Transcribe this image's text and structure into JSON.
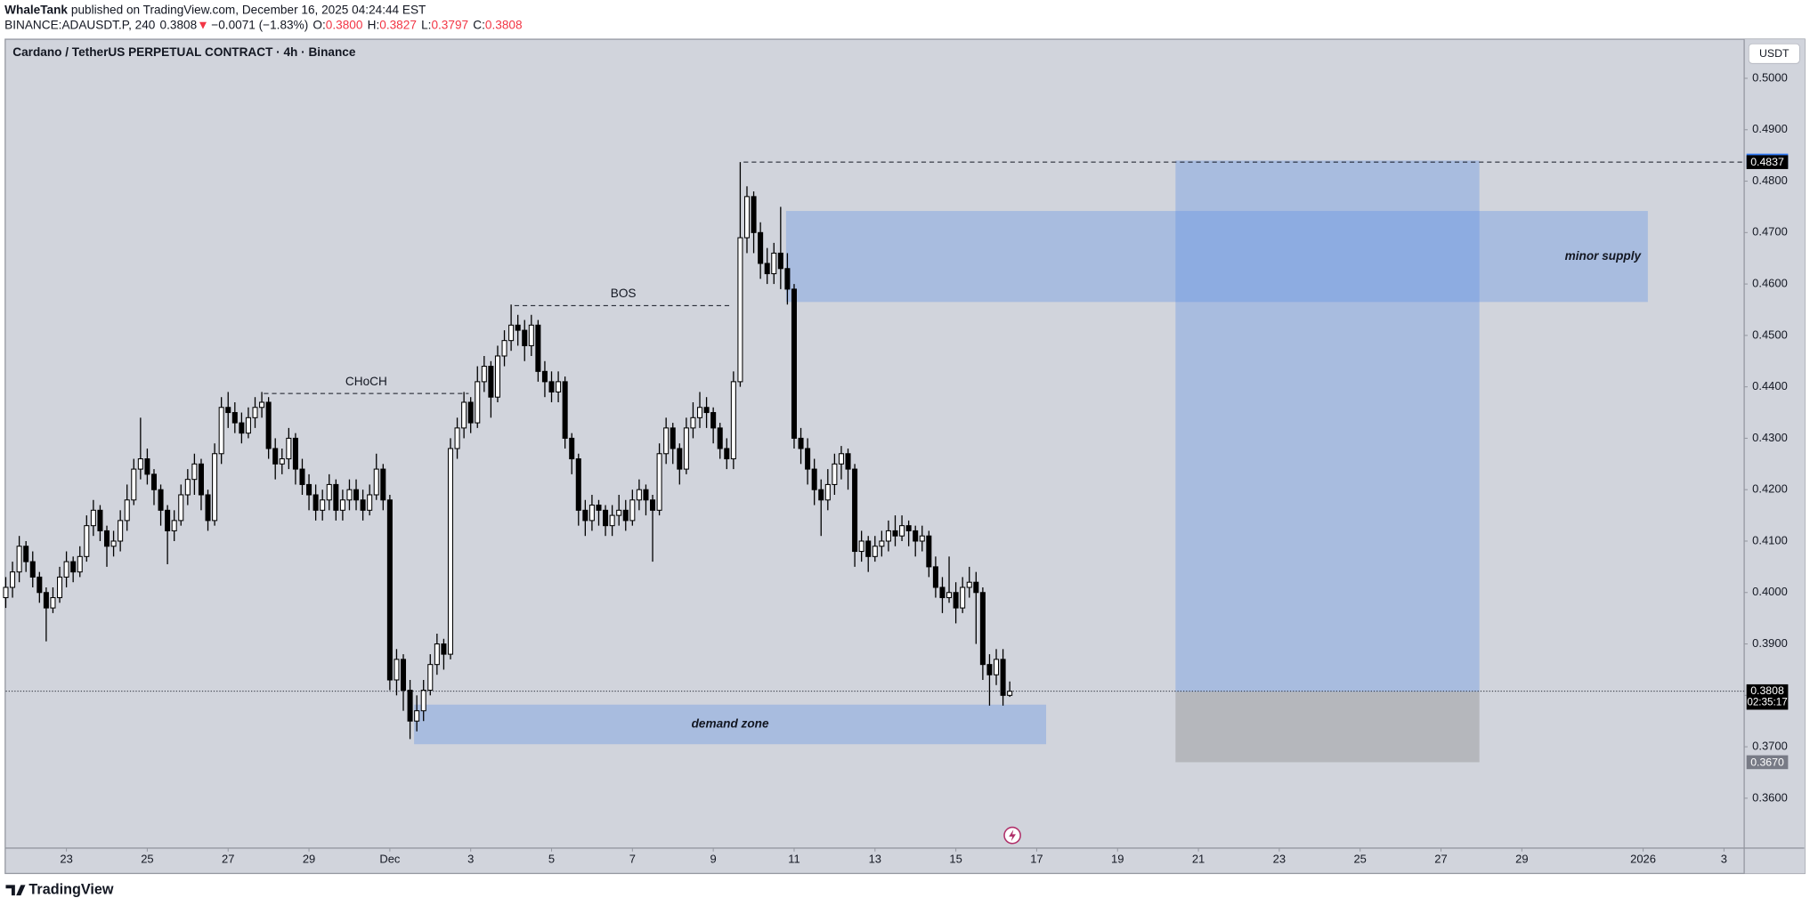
{
  "header": {
    "author": "WhaleTank",
    "published": "published on TradingView.com, December 16, 2025 04:24:44 EST",
    "symbol": "BINANCE:ADAUSDT.P, 240",
    "last": "0.3808",
    "arrow": "▼",
    "change": "−0.0071 (−1.83%)",
    "o_label": "O:",
    "o": "0.3800",
    "h_label": "H:",
    "h": "0.3827",
    "l_label": "L:",
    "l": "0.3797",
    "c_label": "C:",
    "c": "0.3808"
  },
  "chart_data": {
    "type": "candlestick",
    "title": "Cardano / TetherUS PERPETUAL CONTRACT · 4h · Binance",
    "currency": "USDT",
    "open": [
      0.399,
      0.401,
      0.404,
      0.409,
      0.406,
      0.403,
      0.4,
      0.397,
      0.399,
      0.403,
      0.406,
      0.404,
      0.407,
      0.413,
      0.416,
      0.412,
      0.409,
      0.41,
      0.414,
      0.418,
      0.424,
      0.426,
      0.423,
      0.42,
      0.416,
      0.412,
      0.414,
      0.419,
      0.422,
      0.425,
      0.419,
      0.414,
      0.427,
      0.436,
      0.435,
      0.433,
      0.431,
      0.434,
      0.436,
      0.437,
      0.428,
      0.425,
      0.426,
      0.43,
      0.424,
      0.421,
      0.419,
      0.416,
      0.418,
      0.421,
      0.416,
      0.418,
      0.42,
      0.418,
      0.416,
      0.419,
      0.424,
      0.418,
      0.383,
      0.387,
      0.381,
      0.375,
      0.377,
      0.381,
      0.386,
      0.39,
      0.388,
      0.428,
      0.432,
      0.437,
      0.433,
      0.441,
      0.444,
      0.438,
      0.446,
      0.449,
      0.452,
      0.451,
      0.448,
      0.452,
      0.443,
      0.441,
      0.439,
      0.441,
      0.43,
      0.426,
      0.416,
      0.414,
      0.417,
      0.416,
      0.413,
      0.415,
      0.416,
      0.414,
      0.418,
      0.42,
      0.418,
      0.416,
      0.427,
      0.432,
      0.428,
      0.424,
      0.432,
      0.434,
      0.436,
      0.435,
      0.432,
      0.428,
      0.426,
      0.441,
      0.469,
      0.477,
      0.47,
      0.464,
      0.462,
      0.466,
      0.463,
      0.459,
      0.43,
      0.428,
      0.424,
      0.42,
      0.418,
      0.421,
      0.425,
      0.427,
      0.424,
      0.408,
      0.41,
      0.407,
      0.409,
      0.41,
      0.412,
      0.411,
      0.413,
      0.412,
      0.41,
      0.411,
      0.405,
      0.401,
      0.399,
      0.4,
      0.397,
      0.401,
      0.402,
      0.4,
      0.386,
      0.384,
      0.387,
      0.38
    ],
    "high": [
      0.403,
      0.406,
      0.411,
      0.41,
      0.408,
      0.404,
      0.401,
      0.401,
      0.405,
      0.408,
      0.407,
      0.409,
      0.415,
      0.418,
      0.417,
      0.413,
      0.412,
      0.416,
      0.421,
      0.426,
      0.434,
      0.428,
      0.424,
      0.421,
      0.417,
      0.416,
      0.421,
      0.424,
      0.427,
      0.426,
      0.42,
      0.429,
      0.438,
      0.439,
      0.437,
      0.435,
      0.436,
      0.438,
      0.439,
      0.438,
      0.43,
      0.428,
      0.432,
      0.431,
      0.426,
      0.423,
      0.421,
      0.42,
      0.423,
      0.422,
      0.42,
      0.422,
      0.422,
      0.42,
      0.421,
      0.427,
      0.425,
      0.419,
      0.389,
      0.388,
      0.383,
      0.38,
      0.383,
      0.388,
      0.392,
      0.391,
      0.43,
      0.434,
      0.439,
      0.438,
      0.444,
      0.446,
      0.445,
      0.448,
      0.451,
      0.456,
      0.454,
      0.453,
      0.454,
      0.453,
      0.445,
      0.443,
      0.443,
      0.442,
      0.431,
      0.427,
      0.418,
      0.419,
      0.418,
      0.417,
      0.417,
      0.419,
      0.418,
      0.42,
      0.422,
      0.421,
      0.419,
      0.429,
      0.434,
      0.433,
      0.429,
      0.434,
      0.437,
      0.439,
      0.438,
      0.436,
      0.433,
      0.43,
      0.443,
      0.4837,
      0.479,
      0.478,
      0.472,
      0.467,
      0.468,
      0.475,
      0.466,
      0.46,
      0.432,
      0.43,
      0.426,
      0.422,
      0.424,
      0.427,
      0.4285,
      0.428,
      0.425,
      0.412,
      0.411,
      0.411,
      0.412,
      0.414,
      0.415,
      0.415,
      0.414,
      0.413,
      0.413,
      0.412,
      0.407,
      0.403,
      0.407,
      0.402,
      0.403,
      0.405,
      0.404,
      0.401,
      0.388,
      0.389,
      0.389,
      0.3827
    ],
    "low": [
      0.397,
      0.399,
      0.402,
      0.404,
      0.401,
      0.398,
      0.3905,
      0.396,
      0.398,
      0.401,
      0.402,
      0.403,
      0.406,
      0.411,
      0.41,
      0.405,
      0.407,
      0.408,
      0.412,
      0.417,
      0.422,
      0.421,
      0.417,
      0.413,
      0.4055,
      0.41,
      0.413,
      0.417,
      0.419,
      0.416,
      0.412,
      0.413,
      0.425,
      0.432,
      0.431,
      0.429,
      0.43,
      0.432,
      0.434,
      0.426,
      0.422,
      0.423,
      0.424,
      0.421,
      0.419,
      0.416,
      0.414,
      0.414,
      0.416,
      0.414,
      0.414,
      0.416,
      0.416,
      0.414,
      0.415,
      0.418,
      0.416,
      0.381,
      0.38,
      0.377,
      0.3715,
      0.373,
      0.375,
      0.38,
      0.384,
      0.385,
      0.387,
      0.426,
      0.43,
      0.431,
      0.432,
      0.439,
      0.434,
      0.437,
      0.444,
      0.447,
      0.448,
      0.445,
      0.446,
      0.441,
      0.438,
      0.437,
      0.437,
      0.428,
      0.423,
      0.413,
      0.411,
      0.412,
      0.413,
      0.411,
      0.411,
      0.413,
      0.412,
      0.413,
      0.416,
      0.415,
      0.406,
      0.415,
      0.425,
      0.425,
      0.421,
      0.423,
      0.43,
      0.432,
      0.432,
      0.429,
      0.426,
      0.424,
      0.424,
      0.44,
      0.466,
      0.466,
      0.461,
      0.46,
      0.46,
      0.459,
      0.456,
      0.428,
      0.425,
      0.421,
      0.417,
      0.411,
      0.416,
      0.419,
      0.422,
      0.42,
      0.405,
      0.406,
      0.404,
      0.406,
      0.407,
      0.408,
      0.409,
      0.41,
      0.409,
      0.407,
      0.408,
      0.403,
      0.399,
      0.396,
      0.398,
      0.394,
      0.396,
      0.399,
      0.39,
      0.383,
      0.378,
      0.382,
      0.378,
      0.3797
    ],
    "close": [
      0.401,
      0.404,
      0.409,
      0.406,
      0.403,
      0.4,
      0.397,
      0.399,
      0.403,
      0.406,
      0.404,
      0.407,
      0.413,
      0.416,
      0.412,
      0.409,
      0.41,
      0.414,
      0.418,
      0.424,
      0.426,
      0.423,
      0.42,
      0.416,
      0.412,
      0.414,
      0.419,
      0.422,
      0.425,
      0.419,
      0.414,
      0.427,
      0.436,
      0.435,
      0.433,
      0.431,
      0.434,
      0.436,
      0.437,
      0.428,
      0.425,
      0.426,
      0.43,
      0.424,
      0.421,
      0.419,
      0.416,
      0.418,
      0.421,
      0.416,
      0.418,
      0.42,
      0.418,
      0.416,
      0.419,
      0.424,
      0.418,
      0.383,
      0.387,
      0.381,
      0.375,
      0.377,
      0.381,
      0.386,
      0.39,
      0.388,
      0.428,
      0.432,
      0.437,
      0.433,
      0.441,
      0.444,
      0.438,
      0.446,
      0.449,
      0.452,
      0.451,
      0.448,
      0.452,
      0.443,
      0.441,
      0.439,
      0.441,
      0.43,
      0.426,
      0.416,
      0.414,
      0.417,
      0.416,
      0.413,
      0.415,
      0.416,
      0.414,
      0.418,
      0.42,
      0.418,
      0.416,
      0.427,
      0.432,
      0.428,
      0.424,
      0.432,
      0.434,
      0.436,
      0.435,
      0.432,
      0.428,
      0.426,
      0.441,
      0.469,
      0.477,
      0.47,
      0.464,
      0.462,
      0.466,
      0.463,
      0.459,
      0.43,
      0.428,
      0.424,
      0.42,
      0.418,
      0.421,
      0.425,
      0.427,
      0.424,
      0.408,
      0.41,
      0.407,
      0.409,
      0.41,
      0.412,
      0.411,
      0.413,
      0.412,
      0.41,
      0.411,
      0.405,
      0.401,
      0.399,
      0.4,
      0.397,
      0.401,
      0.402,
      0.4,
      0.386,
      0.384,
      0.387,
      0.38,
      0.3808
    ],
    "up_color": "#ffffff",
    "down_color": "#000000",
    "xlim": [
      0,
      258
    ],
    "xticks": [
      {
        "value": 9,
        "label": "23"
      },
      {
        "value": 21,
        "label": "25"
      },
      {
        "value": 33,
        "label": "27"
      },
      {
        "value": 45,
        "label": "29"
      },
      {
        "value": 57,
        "label": "Dec"
      },
      {
        "value": 69,
        "label": "3"
      },
      {
        "value": 81,
        "label": "5"
      },
      {
        "value": 93,
        "label": "7"
      },
      {
        "value": 105,
        "label": "9"
      },
      {
        "value": 117,
        "label": "11"
      },
      {
        "value": 129,
        "label": "13"
      },
      {
        "value": 141,
        "label": "15"
      },
      {
        "value": 153,
        "label": "17"
      },
      {
        "value": 165,
        "label": "19"
      },
      {
        "value": 177,
        "label": "21"
      },
      {
        "value": 189,
        "label": "23"
      },
      {
        "value": 201,
        "label": "25"
      },
      {
        "value": 213,
        "label": "27"
      },
      {
        "value": 225,
        "label": "29"
      },
      {
        "value": 243,
        "label": "2026"
      },
      {
        "value": 255,
        "label": "3"
      }
    ],
    "ylim": [
      0.3503,
      0.5076
    ],
    "yticks": [
      {
        "value": 0.36,
        "label": "0.3600"
      },
      {
        "value": 0.37,
        "label": "0.3700"
      },
      {
        "value": 0.38,
        "label": "0.3800"
      },
      {
        "value": 0.39,
        "label": "0.3900"
      },
      {
        "value": 0.4,
        "label": "0.4000"
      },
      {
        "value": 0.41,
        "label": "0.4100"
      },
      {
        "value": 0.42,
        "label": "0.4200"
      },
      {
        "value": 0.43,
        "label": "0.4300"
      },
      {
        "value": 0.44,
        "label": "0.4400"
      },
      {
        "value": 0.45,
        "label": "0.4500"
      },
      {
        "value": 0.46,
        "label": "0.4600"
      },
      {
        "value": 0.47,
        "label": "0.4700"
      },
      {
        "value": 0.48,
        "label": "0.4800"
      },
      {
        "value": 0.49,
        "label": "0.4900"
      },
      {
        "value": 0.5,
        "label": "0.5000"
      }
    ],
    "grid": false,
    "zones": [
      {
        "label": "demand zone",
        "x": [
          60.6,
          154.4
        ],
        "y": [
          0.3705,
          0.3782
        ],
        "color": "#5b8ee6",
        "label_align": "center"
      },
      {
        "label": "minor supply",
        "x": [
          115.8,
          243.7
        ],
        "y": [
          0.4565,
          0.4742
        ],
        "color": "#5b8ee6",
        "label_align": "right"
      }
    ],
    "lines": [
      {
        "label": "CHoCH",
        "x": [
          38.3,
          68.7
        ],
        "value": 0.4387
      },
      {
        "label": "BOS",
        "x": [
          75.5,
          107.8
        ],
        "value": 0.4558
      },
      {
        "x": [
          109.5,
          258
        ],
        "value": 0.4837,
        "axis_label": "0.4837"
      }
    ],
    "position": {
      "x": [
        173.6,
        218.7
      ],
      "profit_color": "#5b8ee6",
      "loss_color": "#808080",
      "target": {
        "value": 0.484,
        "label": "0.4840",
        "color": "#3179f5"
      },
      "entry": {
        "value": 0.3807,
        "label": "0.3807",
        "color": "#787b86"
      },
      "stop": {
        "value": 0.367,
        "label": "0.3670",
        "color": "#787b86"
      }
    },
    "last_price": {
      "label": "0.3808",
      "countdown": "02:35:17",
      "color": "#000000"
    }
  },
  "footer": {
    "brand": "TradingView"
  }
}
